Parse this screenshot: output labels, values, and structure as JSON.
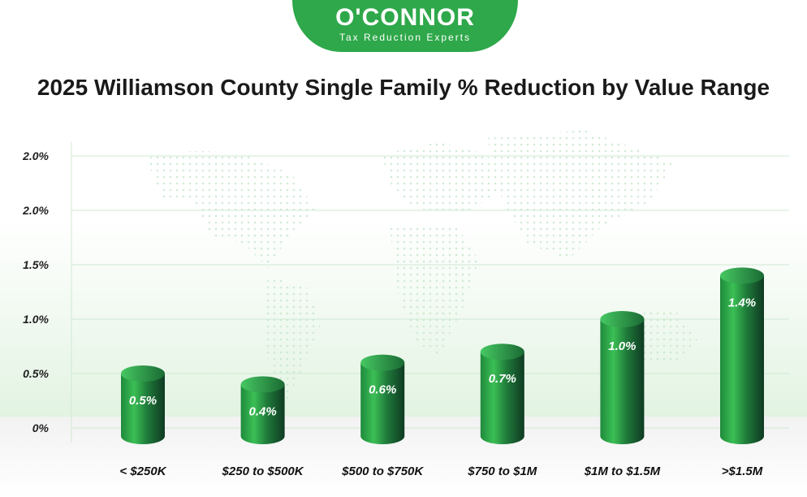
{
  "brand": {
    "name": "O'CONNOR",
    "tagline": "Tax Reduction Experts",
    "color": "#2ea84a"
  },
  "chart_data": {
    "type": "bar",
    "title": "2025 Williamson County Single Family % Reduction by Value Range",
    "xlabel": "",
    "ylabel": "",
    "categories": [
      "< $250K",
      "$250 to $500K",
      "$500 to $750K",
      "$750 to $1M",
      "$1M to $1.5M",
      ">$1.5M"
    ],
    "values": [
      0.5,
      0.4,
      0.6,
      0.7,
      1.0,
      1.4
    ],
    "value_labels": [
      "0.5%",
      "0.4%",
      "0.6%",
      "0.7%",
      "1.0%",
      "1.4%"
    ],
    "y_tick_labels": [
      "0%",
      "0.5%",
      "1.0%",
      "1.5%",
      "2.0%",
      "2.0%"
    ],
    "ylim": [
      0,
      2.5
    ],
    "grid": true,
    "bar_style": "cylinder",
    "colors": {
      "bar_light": "#3bbf55",
      "bar_dark": "#0f3a22",
      "grid": "#cfe9d3"
    }
  }
}
